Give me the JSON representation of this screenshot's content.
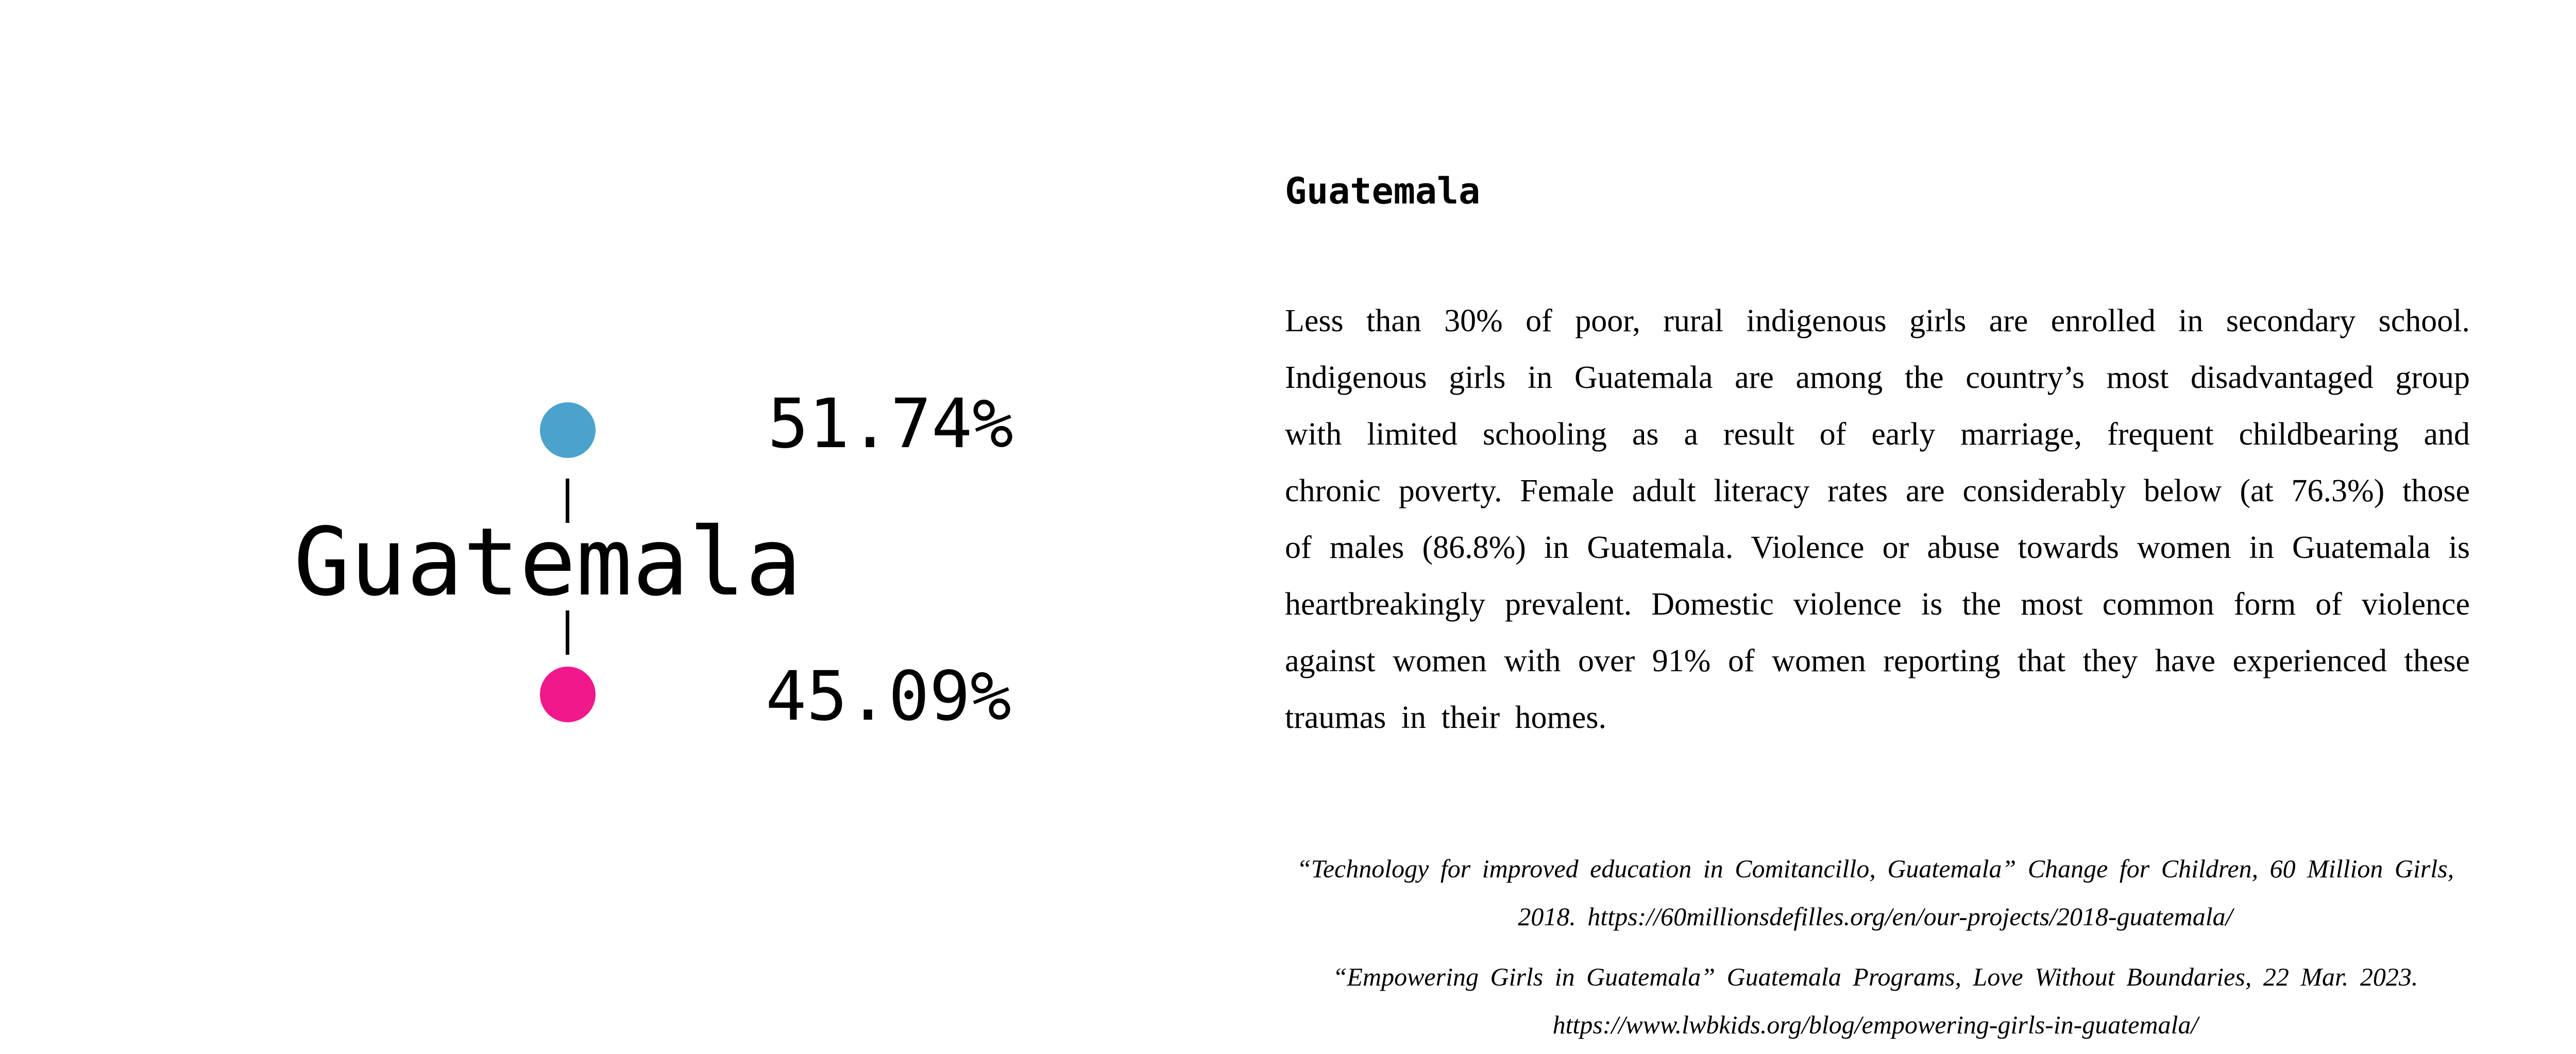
{
  "stats": {
    "country": "Guatemala",
    "male_percent": "51.74%",
    "female_percent": "45.09%",
    "male_color": "#4aa3cc",
    "female_color": "#f0188a"
  },
  "article": {
    "title": "Guatemala",
    "body": "Less than 30% of poor, rural indigenous girls are enrolled in secondary school. Indigenous girls in Guatemala are among the country’s most disadvantaged group with limited schooling as a result of early marriage, frequent childbearing and chronic poverty. Female adult literacy rates are considerably below (at 76.3%) those of males (86.8%) in Guatemala. Violence or abuse towards women in Guatemala is heartbreakingly prevalent. Domestic violence is the most common form of violence against women with over 91% of women reporting that they have experienced these traumas in their homes."
  },
  "citations": [
    "“Technology for improved education in Comitancillo, Guatemala” Change for Children, 60 Million Girls, 2018. https://60millionsdefilles.org/en/our-projects/2018-guatemala/",
    "“Empowering Girls in Guatemala” Guatemala Programs, Love Without Boundaries, 22 Mar. 2023. https://www.lwbkids.org/blog/empowering-girls-in-guatemala/"
  ]
}
